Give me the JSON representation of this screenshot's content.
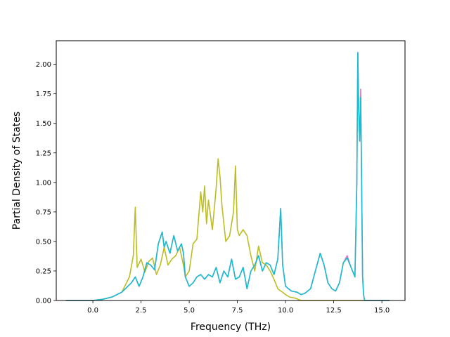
{
  "chart_data": {
    "type": "line",
    "title": "",
    "xlabel": "Frequency (THz)",
    "ylabel": "Partial Density of States",
    "xlim": [
      -1.9,
      16.2
    ],
    "ylim": [
      0,
      2.2
    ],
    "xticks": [
      "0.0",
      "2.5",
      "5.0",
      "7.5",
      "10.0",
      "12.5",
      "15.0"
    ],
    "yticks": [
      "0.00",
      "0.25",
      "0.50",
      "0.75",
      "1.00",
      "1.25",
      "1.50",
      "1.75",
      "2.00"
    ],
    "grid": false,
    "legend": "none",
    "series": [
      {
        "color": "#bcbd22",
        "x": [
          -1.4,
          0.0,
          0.5,
          1.0,
          1.5,
          1.9,
          2.1,
          2.2,
          2.3,
          2.5,
          2.7,
          2.9,
          3.1,
          3.3,
          3.5,
          3.7,
          3.9,
          4.1,
          4.3,
          4.5,
          4.7,
          4.8,
          5.0,
          5.2,
          5.4,
          5.6,
          5.7,
          5.8,
          5.9,
          6.0,
          6.2,
          6.4,
          6.5,
          6.6,
          6.7,
          6.9,
          7.1,
          7.3,
          7.4,
          7.5,
          7.6,
          7.8,
          8.0,
          8.2,
          8.4,
          8.6,
          8.8,
          9.0,
          9.2,
          9.4,
          9.6,
          9.75,
          9.85,
          10.0,
          10.2,
          10.5,
          10.8,
          11.5,
          12.5,
          13.5,
          14.0,
          14.5,
          15.0,
          15.4
        ],
        "values": [
          0.0,
          0.0,
          0.01,
          0.03,
          0.07,
          0.2,
          0.38,
          0.79,
          0.28,
          0.35,
          0.24,
          0.33,
          0.36,
          0.22,
          0.3,
          0.45,
          0.3,
          0.35,
          0.38,
          0.45,
          0.3,
          0.2,
          0.25,
          0.48,
          0.52,
          0.92,
          0.75,
          0.97,
          0.65,
          0.85,
          0.6,
          0.95,
          1.2,
          1.05,
          0.8,
          0.5,
          0.55,
          0.75,
          1.14,
          0.6,
          0.55,
          0.6,
          0.55,
          0.38,
          0.25,
          0.46,
          0.32,
          0.3,
          0.25,
          0.18,
          0.1,
          0.08,
          0.07,
          0.05,
          0.03,
          0.02,
          0.0,
          0.0,
          0.0,
          0.0,
          0.0,
          0.0,
          0.0,
          0.0
        ]
      },
      {
        "color": "#e377c2",
        "x": [
          -1.4,
          0.0,
          0.5,
          1.0,
          1.5,
          2.0,
          2.2,
          2.4,
          2.6,
          2.8,
          3.0,
          3.2,
          3.4,
          3.6,
          3.7,
          3.8,
          4.0,
          4.2,
          4.4,
          4.6,
          4.7,
          4.8,
          5.0,
          5.2,
          5.4,
          5.6,
          5.8,
          6.0,
          6.2,
          6.4,
          6.6,
          6.8,
          7.0,
          7.2,
          7.4,
          7.6,
          7.8,
          8.0,
          8.2,
          8.4,
          8.6,
          8.8,
          9.0,
          9.2,
          9.4,
          9.6,
          9.75,
          9.85,
          10.0,
          10.3,
          10.6,
          10.8,
          11.0,
          11.3,
          11.6,
          11.8,
          12.0,
          12.2,
          12.4,
          12.6,
          12.8,
          13.0,
          13.2,
          13.4,
          13.6,
          13.7,
          13.75,
          13.8,
          13.85,
          13.9,
          13.95,
          14.0,
          14.05,
          14.1,
          14.5,
          15.0,
          15.4
        ],
        "values": [
          0.0,
          0.0,
          0.01,
          0.03,
          0.07,
          0.15,
          0.2,
          0.12,
          0.2,
          0.32,
          0.3,
          0.26,
          0.48,
          0.58,
          0.45,
          0.5,
          0.4,
          0.55,
          0.42,
          0.48,
          0.4,
          0.2,
          0.12,
          0.15,
          0.2,
          0.22,
          0.18,
          0.22,
          0.2,
          0.28,
          0.15,
          0.25,
          0.2,
          0.35,
          0.18,
          0.2,
          0.28,
          0.1,
          0.25,
          0.3,
          0.38,
          0.25,
          0.32,
          0.3,
          0.22,
          0.35,
          0.78,
          0.3,
          0.12,
          0.08,
          0.07,
          0.05,
          0.06,
          0.1,
          0.28,
          0.4,
          0.3,
          0.15,
          0.1,
          0.08,
          0.15,
          0.32,
          0.38,
          0.28,
          0.2,
          1.0,
          2.1,
          1.6,
          1.35,
          1.79,
          1.0,
          0.2,
          0.05,
          0.0,
          0.0,
          0.0,
          0.0
        ]
      },
      {
        "color": "#17becf",
        "x": [
          -1.4,
          0.0,
          0.5,
          1.0,
          1.5,
          2.0,
          2.2,
          2.4,
          2.6,
          2.8,
          3.0,
          3.2,
          3.4,
          3.6,
          3.7,
          3.8,
          4.0,
          4.2,
          4.4,
          4.6,
          4.7,
          4.8,
          5.0,
          5.2,
          5.4,
          5.6,
          5.8,
          6.0,
          6.2,
          6.4,
          6.6,
          6.8,
          7.0,
          7.2,
          7.4,
          7.6,
          7.8,
          8.0,
          8.2,
          8.4,
          8.6,
          8.8,
          9.0,
          9.2,
          9.4,
          9.6,
          9.75,
          9.85,
          10.0,
          10.3,
          10.6,
          10.8,
          11.0,
          11.3,
          11.6,
          11.8,
          12.0,
          12.2,
          12.4,
          12.6,
          12.8,
          13.0,
          13.2,
          13.4,
          13.6,
          13.7,
          13.75,
          13.8,
          13.85,
          13.9,
          13.95,
          14.0,
          14.05,
          14.1,
          14.5,
          15.0,
          15.4
        ],
        "values": [
          0.0,
          0.0,
          0.01,
          0.03,
          0.07,
          0.15,
          0.2,
          0.12,
          0.2,
          0.32,
          0.3,
          0.26,
          0.48,
          0.58,
          0.45,
          0.5,
          0.4,
          0.55,
          0.42,
          0.48,
          0.4,
          0.2,
          0.12,
          0.15,
          0.2,
          0.22,
          0.18,
          0.22,
          0.2,
          0.28,
          0.15,
          0.25,
          0.2,
          0.35,
          0.18,
          0.2,
          0.28,
          0.1,
          0.25,
          0.3,
          0.38,
          0.25,
          0.32,
          0.3,
          0.22,
          0.35,
          0.78,
          0.3,
          0.12,
          0.08,
          0.07,
          0.05,
          0.06,
          0.1,
          0.28,
          0.4,
          0.3,
          0.15,
          0.1,
          0.08,
          0.15,
          0.32,
          0.36,
          0.28,
          0.2,
          1.0,
          2.1,
          1.6,
          1.35,
          1.72,
          1.0,
          0.2,
          0.05,
          0.0,
          0.0,
          0.0,
          0.0
        ]
      }
    ]
  }
}
